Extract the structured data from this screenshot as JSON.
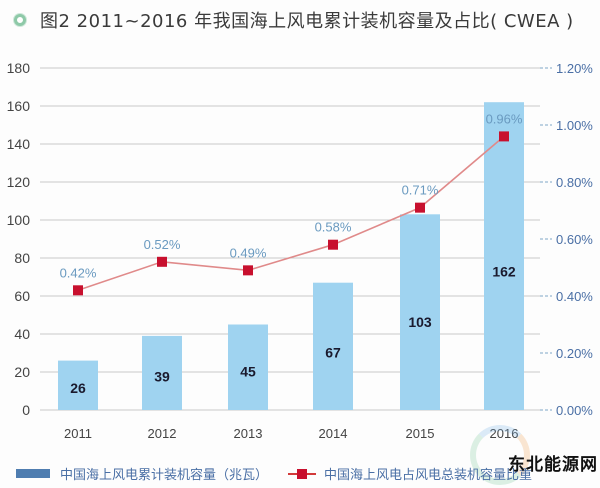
{
  "header": {
    "icon": "circle-bullet-icon",
    "title": "图2 2011~2016 年我国海上风电累计装机容量及占比( CWEA )"
  },
  "chart_data": {
    "type": "bar",
    "title": "图2 2011~2016 年我国海上风电累计装机容量及占比( CWEA )",
    "categories": [
      "2011",
      "2012",
      "2013",
      "2014",
      "2015",
      "2016"
    ],
    "series": [
      {
        "name": "中国海上风电累计装机容量（兆瓦）",
        "type": "bar",
        "axis": "left",
        "values": [
          26,
          39,
          45,
          67,
          103,
          162
        ],
        "labels": [
          "26",
          "39",
          "45",
          "67",
          "103",
          "162"
        ],
        "color": "#9fd3f0"
      },
      {
        "name": "中国海上风电占风电总装机容量比重",
        "type": "line",
        "axis": "right",
        "values": [
          0.42,
          0.52,
          0.49,
          0.58,
          0.71,
          0.96
        ],
        "labels": [
          "0.42%",
          "0.52%",
          "0.49%",
          "0.58%",
          "0.71%",
          "0.96%"
        ],
        "color": "#c8102e",
        "line_color": "#e08a8a"
      }
    ],
    "y_left": {
      "ylim": [
        0,
        180
      ],
      "ticks": [
        "0",
        "20",
        "40",
        "60",
        "80",
        "100",
        "120",
        "140",
        "160",
        "180"
      ]
    },
    "y_right": {
      "ylim": [
        0,
        1.2
      ],
      "ticks": [
        "0.00%",
        "0.20%",
        "0.40%",
        "0.60%",
        "0.80%",
        "1.00%",
        "1.20%"
      ]
    },
    "grid": true,
    "legend": "bottom"
  },
  "legend": {
    "bar_label": "中国海上风电累计装机容量（兆瓦）",
    "line_label": "中国海上风电占风电总装机容量比重"
  },
  "watermark": "东北能源网"
}
